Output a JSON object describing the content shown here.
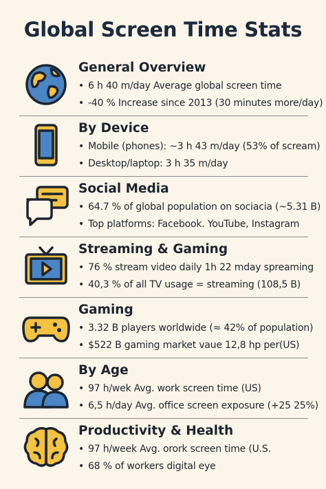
{
  "title": "Global Screen Time Stats",
  "sections": [
    {
      "heading": "General Overview",
      "bullets": [
        "6 h 40 m/day   Average global screen time",
        "-40 %   Increase since 2013 (30 minutes more/day)"
      ]
    },
    {
      "heading": "By Device",
      "bullets": [
        "Mobile (phones):  ~3 h 43 m/day (53% of scream)",
        "Desktop/laptop:    3 h 35 m/day"
      ]
    },
    {
      "heading": "Social Media",
      "bullets": [
        "64.7 % of global population on sociacia  (~5.31 B)",
        "Top platforms: Facebook. YouTube, Instagram"
      ]
    },
    {
      "heading": "Streaming & Gaming",
      "bullets": [
        "76 % stream video daily   1h 22 mday spreaming",
        "40,3 % of all TV usage = streaming  (108,5 B)"
      ]
    },
    {
      "heading": "Gaming",
      "bullets": [
        "3.32 B players worldwide    (≈ 42% of population)",
        "$522 B gaming market vaue 12,8 hp per(US)"
      ]
    },
    {
      "heading": "By Age",
      "bullets": [
        "97 h/wek   Avg. work screen time (US)",
        "6,5 h/day   Avg. office screen exposure (+25 25%)"
      ]
    },
    {
      "heading": "Productivity & Health",
      "bullets": [
        "97 h/week   Avg. orork screen time (U.S.",
        "68 % of workers  digital eye"
      ]
    }
  ]
}
